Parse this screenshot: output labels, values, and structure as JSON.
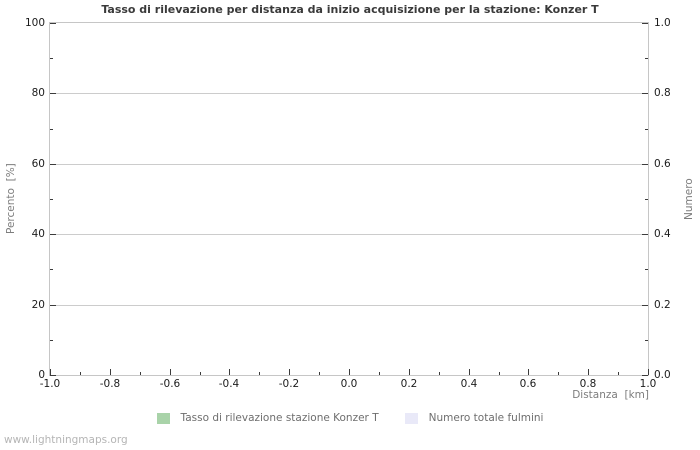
{
  "title": "Tasso di rilevazione per distanza da inizio acquisizione per la stazione: Konzer T",
  "watermark": "www.lightningmaps.org",
  "colors": {
    "series_green": "#a9d3a9",
    "series_lavender": "#e9e9f8",
    "grid": "#cccccc",
    "frame": "#c6c6c6",
    "tick_mark": "#3c3c3c",
    "tick_label": "#1c1c1c",
    "axis_title": "#7d7d7d",
    "legend_text": "#6e6e6e",
    "title_text": "#3a3a3a",
    "watermark_text": "#b5b5b5",
    "background": "#ffffff"
  },
  "axes": {
    "left": {
      "label": "Percento  [%]",
      "range": [
        0,
        100
      ],
      "major": [
        {
          "value": 0,
          "label": "0"
        },
        {
          "value": 20,
          "label": "20"
        },
        {
          "value": 40,
          "label": "40"
        },
        {
          "value": 60,
          "label": "60"
        },
        {
          "value": 80,
          "label": "80"
        },
        {
          "value": 100,
          "label": "100"
        }
      ],
      "minor": [
        10,
        30,
        50,
        70,
        90
      ]
    },
    "right": {
      "label": "Numero",
      "range": [
        0,
        1
      ],
      "major": [
        {
          "value": 0,
          "label": "0.0"
        },
        {
          "value": 0.2,
          "label": "0.2"
        },
        {
          "value": 0.4,
          "label": "0.4"
        },
        {
          "value": 0.6,
          "label": "0.6"
        },
        {
          "value": 0.8,
          "label": "0.8"
        },
        {
          "value": 1,
          "label": "1.0"
        }
      ],
      "minor": [
        0.1,
        0.3,
        0.5,
        0.7,
        0.9
      ]
    },
    "bottom": {
      "label": "Distanza  [km]",
      "range": [
        -1,
        1
      ],
      "major": [
        {
          "value": -1.0,
          "label": "-1.0"
        },
        {
          "value": -0.8,
          "label": "-0.8"
        },
        {
          "value": -0.6,
          "label": "-0.6"
        },
        {
          "value": -0.4,
          "label": "-0.4"
        },
        {
          "value": -0.2,
          "label": "-0.2"
        },
        {
          "value": 0.0,
          "label": "0.0"
        },
        {
          "value": 0.2,
          "label": "0.2"
        },
        {
          "value": 0.4,
          "label": "0.4"
        },
        {
          "value": 0.6,
          "label": "0.6"
        },
        {
          "value": 0.8,
          "label": "0.8"
        },
        {
          "value": 1.0,
          "label": "1.0"
        }
      ],
      "minor": [
        -0.9,
        -0.7,
        -0.5,
        -0.3,
        -0.1,
        0.1,
        0.3,
        0.5,
        0.7,
        0.9
      ]
    }
  },
  "legend": {
    "items": [
      {
        "label": "Tasso di rilevazione stazione Konzer T",
        "color": "#a9d3a9"
      },
      {
        "label": "Numero totale fulmini",
        "color": "#e9e9f8"
      }
    ]
  },
  "chart_data": {
    "type": "line",
    "title": "Tasso di rilevazione per distanza da inizio acquisizione per la stazione: Konzer T",
    "xlabel": "Distanza [km]",
    "ylabel": "Percento [%]",
    "y2label": "Numero",
    "xlim": [
      -1.0,
      1.0
    ],
    "ylim": [
      0,
      100
    ],
    "y2lim": [
      0.0,
      1.0
    ],
    "x_ticks": [
      -1.0,
      -0.8,
      -0.6,
      -0.4,
      -0.2,
      0.0,
      0.2,
      0.4,
      0.6,
      0.8,
      1.0
    ],
    "y_ticks": [
      0,
      20,
      40,
      60,
      80,
      100
    ],
    "y2_ticks": [
      0.0,
      0.2,
      0.4,
      0.6,
      0.8,
      1.0
    ],
    "grid": true,
    "legend_position": "bottom-center",
    "series": [
      {
        "name": "Tasso di rilevazione stazione Konzer T",
        "color": "#a9d3a9",
        "axis": "left",
        "x": [],
        "values": []
      },
      {
        "name": "Numero totale fulmini",
        "color": "#e9e9f8",
        "axis": "right",
        "x": [],
        "values": []
      }
    ]
  }
}
